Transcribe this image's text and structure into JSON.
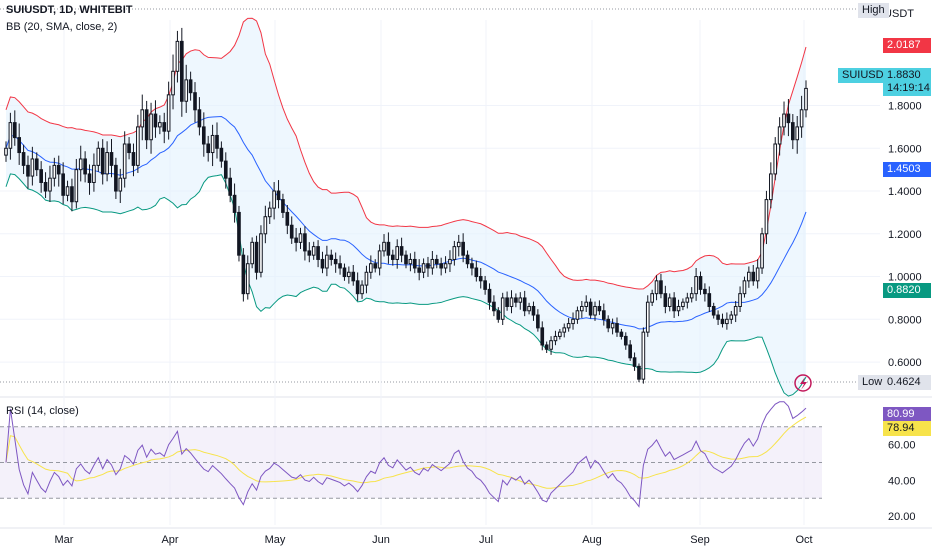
{
  "header": {
    "symbol": "SUIUSDT, 1D, WHITEBIT",
    "indicator": "BB (20, SMA, close, 2)",
    "rsi": "RSI (14, close)"
  },
  "scale": {
    "currency": "USDT"
  },
  "tags": {
    "high": "High",
    "low": "Low",
    "low_value": "0.4624",
    "bb_upper": "2.0187",
    "symbol_label": "SUIUSDT",
    "price": "1.8830",
    "countdown": "14:19:14",
    "bb_basis": "1.4503",
    "bb_lower": "0.8820",
    "rsi_value": "80.99",
    "rsi_ma": "78.94"
  },
  "colors": {
    "up": "#131722",
    "down": "#131722",
    "bb_upper": "#f23645",
    "bb_basis": "#2962ff",
    "bb_lower": "#089981",
    "bb_fill": "#e3f2fd",
    "rsi": "#7e57c2",
    "rsi_ma": "#f7e34b",
    "price_tag": "#4dd0e1",
    "grey_tag": "#e0e3eb"
  },
  "icons": [
    "lightning-icon"
  ],
  "chart_data": [
    {
      "type": "candlestick",
      "title": "SUIUSDT, 1D, WHITEBIT",
      "x_ticks": [
        "Mar",
        "Apr",
        "May",
        "Jun",
        "Jul",
        "Aug",
        "Sep",
        "Oct"
      ],
      "y_ticks": [
        0.6,
        0.8,
        1.0,
        1.2,
        1.4,
        1.6,
        1.8
      ],
      "ylim": [
        0.46,
        2.2
      ],
      "grid": true,
      "close_series": [
        1.6,
        1.72,
        1.65,
        1.58,
        1.52,
        1.47,
        1.55,
        1.5,
        1.44,
        1.4,
        1.46,
        1.52,
        1.48,
        1.38,
        1.42,
        1.35,
        1.5,
        1.55,
        1.48,
        1.44,
        1.52,
        1.6,
        1.48,
        1.58,
        1.52,
        1.4,
        1.46,
        1.62,
        1.58,
        1.52,
        1.7,
        1.78,
        1.64,
        1.76,
        1.7,
        1.72,
        1.68,
        1.85,
        1.96,
        2.1,
        1.82,
        1.92,
        1.86,
        1.78,
        1.7,
        1.62,
        1.58,
        1.66,
        1.6,
        1.54,
        1.46,
        1.38,
        1.3,
        1.1,
        0.92,
        1.06,
        1.16,
        1.02,
        1.2,
        1.28,
        1.32,
        1.4,
        1.36,
        1.3,
        1.24,
        1.18,
        1.16,
        1.2,
        1.12,
        1.1,
        1.14,
        1.08,
        1.04,
        1.1,
        1.08,
        1.06,
        1.04,
        1.0,
        1.02,
        0.98,
        0.92,
        0.96,
        1.02,
        1.06,
        1.04,
        1.12,
        1.16,
        1.1,
        1.08,
        1.14,
        1.1,
        1.06,
        1.08,
        1.04,
        1.02,
        1.06,
        1.04,
        1.08,
        1.06,
        1.04,
        1.06,
        1.08,
        1.14,
        1.16,
        1.1,
        1.06,
        1.04,
        1.0,
        0.98,
        0.94,
        0.88,
        0.84,
        0.8,
        0.9,
        0.86,
        0.9,
        0.88,
        0.9,
        0.84,
        0.86,
        0.82,
        0.76,
        0.68,
        0.66,
        0.7,
        0.72,
        0.74,
        0.76,
        0.78,
        0.8,
        0.84,
        0.86,
        0.88,
        0.82,
        0.86,
        0.84,
        0.8,
        0.76,
        0.78,
        0.74,
        0.72,
        0.68,
        0.62,
        0.58,
        0.52,
        0.74,
        0.88,
        0.92,
        0.98,
        0.92,
        0.86,
        0.9,
        0.84,
        0.86,
        0.88,
        0.9,
        0.92,
        1.0,
        0.94,
        0.92,
        0.86,
        0.82,
        0.8,
        0.78,
        0.8,
        0.82,
        0.86,
        0.92,
        0.98,
        1.02,
        0.98,
        1.04,
        1.2,
        1.36,
        1.48,
        1.62,
        1.7,
        1.76,
        1.72,
        1.64,
        1.7,
        1.78,
        1.88
      ],
      "bands": {
        "upper": "2.0187",
        "basis": "1.4503",
        "lower": "0.8820"
      },
      "last": "1.8830",
      "low": "0.4624"
    },
    {
      "type": "line",
      "title": "RSI (14, close)",
      "y_ticks": [
        20,
        40,
        60
      ],
      "levels": [
        70,
        50,
        30
      ],
      "ylim": [
        15,
        85
      ],
      "value": "80.99",
      "ma": "78.94"
    }
  ]
}
